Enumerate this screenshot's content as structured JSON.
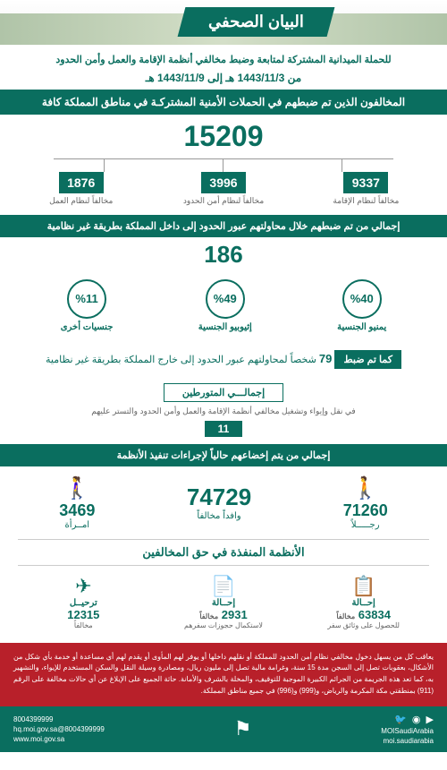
{
  "header": {
    "title": "البيان الصحفي",
    "subtitle": "للحملة الميدانية المشتركة لمتابعة وضبط مخالفي أنظمة الإقامة والعمل وأمن الحدود",
    "date_range": "من 1443/11/3 هـ إلى 1443/11/9 هـ"
  },
  "total_violators": {
    "header": "المخالفون الذين تم ضبطهم في الحملات الأمنية المشتركـة في مناطق المملكة كافة",
    "total": "15209",
    "breakdown": [
      {
        "num": "9337",
        "label": "مخالفاً لنظام الإقامة"
      },
      {
        "num": "3996",
        "label": "مخالفاً لنظام أمن الحدود"
      },
      {
        "num": "1876",
        "label": "مخالفاً لنظام العمل"
      }
    ]
  },
  "crossing_in": {
    "header": "إجمالي من تم ضبطهم خلال محاولتهم عبور الحدود إلى داخل المملكة بطريقة غير نظامية",
    "total": "186",
    "breakdown": [
      {
        "pct": "%40",
        "label": "يمنيو الجنسية"
      },
      {
        "pct": "%49",
        "label": "إثيوبيو الجنسية"
      },
      {
        "pct": "%11",
        "label": "جنسيات أخرى"
      }
    ]
  },
  "crossing_out": {
    "badge": "كما تم ضبط",
    "num": "79",
    "text": "شخصاً لمحاولتهم عبور الحدود إلى خارج المملكة بطريقة غير نظامية"
  },
  "involved": {
    "title": "إجمالـــي المتورطين",
    "desc": "في نقل وإيواء وتشغيل مخالفي أنظمة الإقامة والعمل وأمن الحدود والتستر عليهم",
    "num": "11"
  },
  "procedures": {
    "header": "إجمالي من يتم إخضاعهم حالياً لإجراءات تنفيذ الأنظمة",
    "men": {
      "num": "71260",
      "label": "رجـــــلاً"
    },
    "total": {
      "num": "74729",
      "label": "وافداً مخالفاً"
    },
    "women": {
      "num": "3469",
      "label": "امــرأة"
    }
  },
  "actions": {
    "title": "الأنظمة المنفذة في حق المخالفين",
    "items": [
      {
        "icon": "📋",
        "label": "إحــالة",
        "num": "63834",
        "sub": "مخالفاً",
        "sub2": "للحصول على وثائق سفر"
      },
      {
        "icon": "📄",
        "label": "إحــالة",
        "num": "2931",
        "sub": "مخالفاً",
        "sub2": "لاستكمال حجوزات سفرهم"
      },
      {
        "icon": "✈",
        "label": "ترحيــل",
        "num": "12315",
        "sub": "مخالفاً",
        "sub2": ""
      }
    ]
  },
  "warning": "يعاقب كل من يسهل دخول مخالفي نظام أمن الحدود للمملكة أو نقلهم داخلها أو يوفر لهم المأوى أو يقدم لهم أي مساعدة أو خدمة بأي شكل من الأشكال، بعقوبات تصل إلى السجن مدة 15 سنة، وغرامة مالية تصل إلى مليون ريال، ومصادرة وسيلة النقل والسكن المستخدم للإيواء، والتشهير به، كما تعد هذه الجريمة من الجرائم الكبيرة الموجبة للتوقيف، والمخلة بالشرف والأمانة. حاثة الجميع على الإبلاغ عن أي حالات مخالفة على الرقم (911) بمنطقتي مكة المكرمة والرياض، و(999) و(996) في جميع مناطق المملكة.",
  "footer": {
    "phone1": "8004399999",
    "email": "8004399999@hq.moi.gov.sa",
    "social1": "MOISaudiArabia",
    "social2": "moi.saudiarabia",
    "website": "www.moi.gov.sa"
  }
}
